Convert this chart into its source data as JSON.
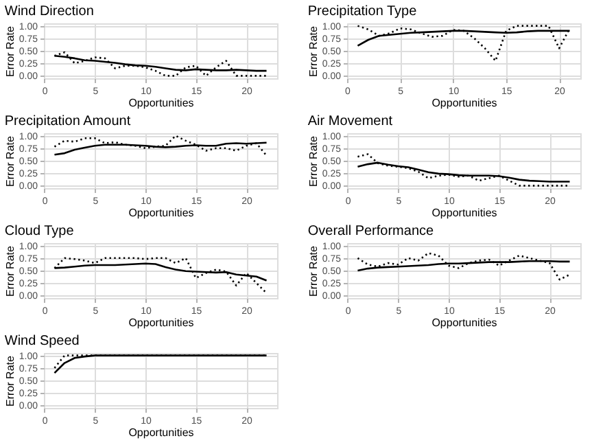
{
  "chart_data": [
    {
      "type": "line",
      "title": "Wind Direction",
      "xlabel": "Opportunities",
      "ylabel": "Error Rate",
      "xlim": [
        -0.05,
        23.05
      ],
      "xticks": [
        0,
        5,
        10,
        15,
        20
      ],
      "ylim": [
        -0.05,
        1.05
      ],
      "yticks": [
        {
          "value": 0,
          "label": "0.00"
        },
        {
          "value": 0.25,
          "label": "0.25"
        },
        {
          "value": 0.5,
          "label": "0.50"
        },
        {
          "value": 0.75,
          "label": "0.75"
        },
        {
          "value": 1,
          "label": "1.00"
        }
      ],
      "grid": true,
      "x": [
        1,
        2,
        3,
        4,
        5,
        6,
        7,
        8,
        9,
        10,
        11,
        12,
        13,
        14,
        15,
        16,
        17,
        18,
        19,
        20,
        21,
        22
      ],
      "series": [
        {
          "color": "#000000",
          "line_style": "dotted",
          "values": [
            0.4,
            0.47,
            0.25,
            0.3,
            0.37,
            0.35,
            0.15,
            0.2,
            0.2,
            0.17,
            0.1,
            0.0,
            0.0,
            0.17,
            0.2,
            0.0,
            0.17,
            0.3,
            0.0,
            0.0,
            0.0,
            0.0
          ]
        },
        {
          "color": "#000000",
          "line_style": "solid",
          "values": [
            0.4,
            0.38,
            0.35,
            0.31,
            0.3,
            0.28,
            0.26,
            0.23,
            0.21,
            0.2,
            0.18,
            0.15,
            0.12,
            0.11,
            0.13,
            0.12,
            0.11,
            0.11,
            0.12,
            0.11,
            0.1,
            0.1
          ]
        }
      ]
    },
    {
      "type": "line",
      "title": "Precipitation Type",
      "xlabel": "Opportunities",
      "ylabel": "Error Rate",
      "xlim": [
        0,
        22
      ],
      "xticks": [
        0,
        5,
        10,
        15,
        20
      ],
      "ylim": [
        -0.05,
        1.05
      ],
      "yticks": [
        {
          "value": 0,
          "label": "0.00"
        },
        {
          "value": 0.25,
          "label": "0.25"
        },
        {
          "value": 0.5,
          "label": "0.50"
        },
        {
          "value": 0.75,
          "label": "0.75"
        },
        {
          "value": 1,
          "label": "1.00"
        }
      ],
      "grid": true,
      "x": [
        1,
        2,
        3,
        4,
        5,
        6,
        7,
        8,
        9,
        10,
        11,
        12,
        13,
        14,
        15,
        16,
        17,
        18,
        19,
        20,
        21
      ],
      "series": [
        {
          "color": "#000000",
          "line_style": "dotted",
          "values": [
            1.0,
            0.93,
            0.8,
            0.85,
            0.95,
            0.93,
            0.85,
            0.78,
            0.8,
            0.92,
            0.9,
            0.75,
            0.55,
            0.3,
            0.9,
            1.0,
            1.0,
            1.0,
            1.0,
            0.55,
            0.95
          ]
        },
        {
          "color": "#000000",
          "line_style": "solid",
          "values": [
            0.6,
            0.72,
            0.8,
            0.82,
            0.84,
            0.86,
            0.87,
            0.88,
            0.89,
            0.9,
            0.9,
            0.89,
            0.88,
            0.87,
            0.86,
            0.87,
            0.89,
            0.9,
            0.9,
            0.9,
            0.9
          ]
        }
      ]
    },
    {
      "type": "line",
      "title": "Precipitation Amount",
      "xlabel": "Opportunities",
      "ylabel": "Error Rate",
      "xlim": [
        -0.05,
        23.05
      ],
      "xticks": [
        0,
        5,
        10,
        15,
        20
      ],
      "ylim": [
        -0.05,
        1.05
      ],
      "yticks": [
        {
          "value": 0,
          "label": "0.00"
        },
        {
          "value": 0.25,
          "label": "0.25"
        },
        {
          "value": 0.5,
          "label": "0.50"
        },
        {
          "value": 0.75,
          "label": "0.75"
        },
        {
          "value": 1,
          "label": "1.00"
        }
      ],
      "grid": true,
      "x": [
        1,
        2,
        3,
        4,
        5,
        6,
        7,
        8,
        9,
        10,
        11,
        12,
        13,
        14,
        15,
        16,
        17,
        18,
        19,
        20,
        21,
        22
      ],
      "series": [
        {
          "color": "#000000",
          "line_style": "dotted",
          "values": [
            0.78,
            0.9,
            0.88,
            0.95,
            0.95,
            0.85,
            0.87,
            0.82,
            0.8,
            0.75,
            0.78,
            0.8,
            1.0,
            0.9,
            0.82,
            0.7,
            0.75,
            0.75,
            0.7,
            0.8,
            0.85,
            0.6
          ]
        },
        {
          "color": "#000000",
          "line_style": "solid",
          "values": [
            0.62,
            0.65,
            0.72,
            0.76,
            0.8,
            0.82,
            0.82,
            0.82,
            0.81,
            0.8,
            0.78,
            0.77,
            0.78,
            0.8,
            0.81,
            0.8,
            0.8,
            0.84,
            0.85,
            0.84,
            0.85,
            0.86
          ]
        }
      ]
    },
    {
      "type": "line",
      "title": "Air Movement",
      "xlabel": "Opportunities",
      "ylabel": "Error Rate",
      "xlim": [
        -0.05,
        23.05
      ],
      "xticks": [
        0,
        5,
        10,
        15,
        20
      ],
      "ylim": [
        -0.05,
        1.05
      ],
      "yticks": [
        {
          "value": 0,
          "label": "0.00"
        },
        {
          "value": 0.25,
          "label": "0.25"
        },
        {
          "value": 0.5,
          "label": "0.50"
        },
        {
          "value": 0.75,
          "label": "0.75"
        },
        {
          "value": 1,
          "label": "1.00"
        }
      ],
      "grid": true,
      "x": [
        1,
        2,
        3,
        4,
        5,
        6,
        7,
        8,
        9,
        10,
        11,
        12,
        13,
        14,
        15,
        16,
        17,
        18,
        19,
        20,
        21,
        22
      ],
      "series": [
        {
          "color": "#000000",
          "line_style": "dotted",
          "values": [
            0.58,
            0.63,
            0.45,
            0.4,
            0.38,
            0.35,
            0.28,
            0.15,
            0.2,
            0.22,
            0.18,
            0.2,
            0.1,
            0.15,
            0.2,
            0.1,
            0.0,
            0.0,
            0.0,
            0.0,
            0.0,
            0.0
          ]
        },
        {
          "color": "#000000",
          "line_style": "solid",
          "values": [
            0.38,
            0.43,
            0.46,
            0.42,
            0.39,
            0.37,
            0.32,
            0.27,
            0.24,
            0.23,
            0.21,
            0.2,
            0.2,
            0.2,
            0.19,
            0.16,
            0.12,
            0.1,
            0.09,
            0.08,
            0.08,
            0.08
          ]
        }
      ]
    },
    {
      "type": "line",
      "title": "Cloud Type",
      "xlabel": "Opportunities",
      "ylabel": "Error Rate",
      "xlim": [
        -0.05,
        23.05
      ],
      "xticks": [
        0,
        5,
        10,
        15,
        20
      ],
      "ylim": [
        -0.05,
        1.05
      ],
      "yticks": [
        {
          "value": 0,
          "label": "0.00"
        },
        {
          "value": 0.25,
          "label": "0.25"
        },
        {
          "value": 0.5,
          "label": "0.50"
        },
        {
          "value": 0.75,
          "label": "0.75"
        },
        {
          "value": 1,
          "label": "1.00"
        }
      ],
      "grid": true,
      "x": [
        1,
        2,
        3,
        4,
        5,
        6,
        7,
        8,
        9,
        10,
        11,
        12,
        13,
        14,
        15,
        16,
        17,
        18,
        19,
        20,
        21,
        22
      ],
      "series": [
        {
          "color": "#000000",
          "line_style": "dotted",
          "values": [
            0.55,
            0.75,
            0.73,
            0.7,
            0.65,
            0.75,
            0.75,
            0.75,
            0.75,
            0.73,
            0.75,
            0.75,
            0.65,
            0.75,
            0.35,
            0.45,
            0.52,
            0.48,
            0.2,
            0.45,
            0.25,
            0.05
          ]
        },
        {
          "color": "#000000",
          "line_style": "solid",
          "values": [
            0.55,
            0.56,
            0.58,
            0.6,
            0.61,
            0.61,
            0.61,
            0.62,
            0.63,
            0.64,
            0.63,
            0.57,
            0.52,
            0.49,
            0.48,
            0.47,
            0.46,
            0.47,
            0.42,
            0.4,
            0.38,
            0.3
          ]
        }
      ]
    },
    {
      "type": "line",
      "title": "Overall Performance",
      "xlabel": "Opportunities",
      "ylabel": "Error Rate",
      "xlim": [
        -0.05,
        23.05
      ],
      "xticks": [
        0,
        5,
        10,
        15,
        20
      ],
      "ylim": [
        -0.05,
        1.05
      ],
      "yticks": [
        {
          "value": 0,
          "label": "0.00"
        },
        {
          "value": 0.25,
          "label": "0.25"
        },
        {
          "value": 0.5,
          "label": "0.50"
        },
        {
          "value": 0.75,
          "label": "0.75"
        },
        {
          "value": 1,
          "label": "1.00"
        }
      ],
      "grid": true,
      "x": [
        1,
        2,
        3,
        4,
        5,
        6,
        7,
        8,
        9,
        10,
        11,
        12,
        13,
        14,
        15,
        16,
        17,
        18,
        19,
        20,
        21,
        22
      ],
      "series": [
        {
          "color": "#000000",
          "line_style": "dotted",
          "values": [
            0.75,
            0.62,
            0.58,
            0.65,
            0.62,
            0.75,
            0.7,
            0.85,
            0.8,
            0.6,
            0.55,
            0.65,
            0.7,
            0.72,
            0.6,
            0.7,
            0.8,
            0.75,
            0.7,
            0.65,
            0.32,
            0.42
          ]
        },
        {
          "color": "#000000",
          "line_style": "solid",
          "values": [
            0.5,
            0.54,
            0.56,
            0.57,
            0.58,
            0.59,
            0.6,
            0.61,
            0.63,
            0.64,
            0.64,
            0.65,
            0.66,
            0.67,
            0.67,
            0.67,
            0.68,
            0.69,
            0.69,
            0.69,
            0.68,
            0.68
          ]
        }
      ]
    },
    {
      "type": "line",
      "title": "Wind Speed",
      "xlabel": "Opportunities",
      "ylabel": "Error Rate",
      "xlim": [
        -0.05,
        23.05
      ],
      "xticks": [
        0,
        5,
        10,
        15,
        20
      ],
      "ylim": [
        -0.05,
        1.05
      ],
      "yticks": [
        {
          "value": 0,
          "label": "0.00"
        },
        {
          "value": 0.25,
          "label": "0.25"
        },
        {
          "value": 0.5,
          "label": "0.50"
        },
        {
          "value": 0.75,
          "label": "0.75"
        },
        {
          "value": 1,
          "label": "1.00"
        }
      ],
      "grid": true,
      "x": [
        1,
        2,
        3,
        4,
        5,
        6,
        7,
        8,
        9,
        10,
        11,
        12,
        13,
        14,
        15,
        16,
        17,
        18,
        19,
        20,
        21,
        22
      ],
      "series": [
        {
          "color": "#000000",
          "line_style": "dotted",
          "values": [
            0.75,
            1.0,
            1.0,
            1.0,
            1.0,
            1.0,
            1.0,
            1.0,
            1.0,
            1.0,
            1.0,
            1.0,
            1.0,
            1.0,
            1.0,
            1.0,
            1.0,
            1.0,
            1.0,
            1.0,
            1.0,
            1.0
          ]
        },
        {
          "color": "#000000",
          "line_style": "solid",
          "values": [
            0.65,
            0.85,
            0.95,
            0.98,
            1.0,
            1.0,
            1.0,
            1.0,
            1.0,
            1.0,
            1.0,
            1.0,
            1.0,
            1.0,
            1.0,
            1.0,
            1.0,
            1.0,
            1.0,
            1.0,
            1.0,
            1.0
          ]
        }
      ]
    }
  ]
}
